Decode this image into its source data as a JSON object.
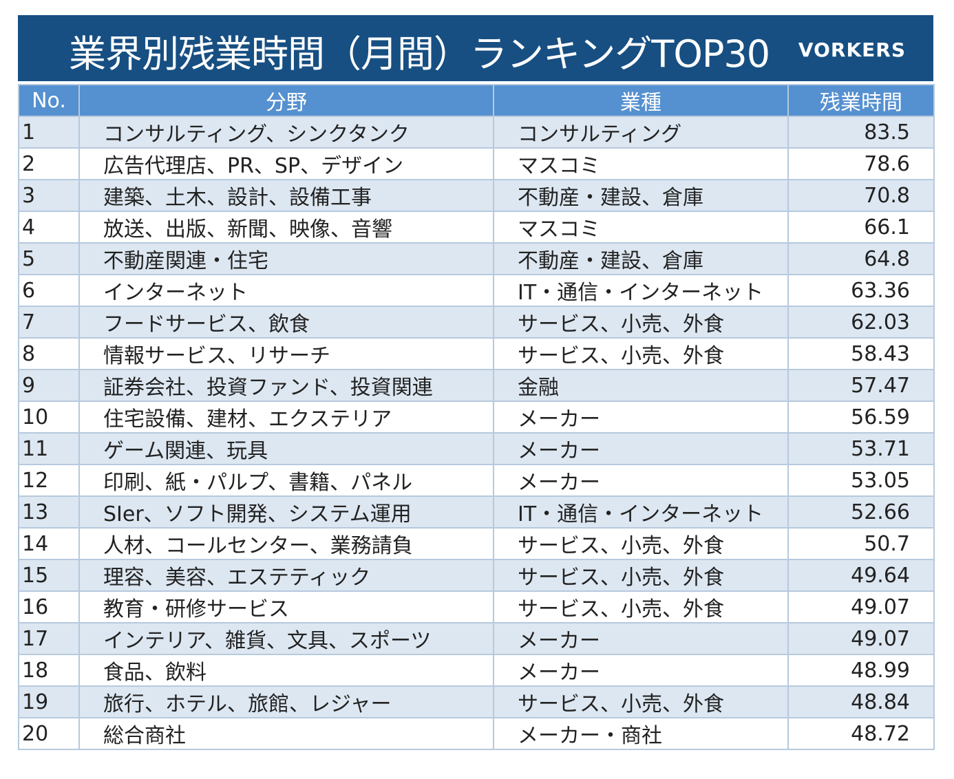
{
  "title": "業界別残業時間（月間）ランキングTOP30",
  "logo": "VORKERS",
  "headers": {
    "no": "No.",
    "field": "分野",
    "industry": "業種",
    "hours": "残業時間"
  },
  "rows": [
    {
      "no": "1",
      "field": "コンサルティング、シンクタンク",
      "industry": "コンサルティング",
      "hours": "83.5"
    },
    {
      "no": "2",
      "field": "広告代理店、PR、SP、デザイン",
      "industry": "マスコミ",
      "hours": "78.6"
    },
    {
      "no": "3",
      "field": "建築、土木、設計、設備工事",
      "industry": "不動産・建設、倉庫",
      "hours": "70.8"
    },
    {
      "no": "4",
      "field": "放送、出版、新聞、映像、音響",
      "industry": "マスコミ",
      "hours": "66.1"
    },
    {
      "no": "5",
      "field": "不動産関連・住宅",
      "industry": "不動産・建設、倉庫",
      "hours": "64.8"
    },
    {
      "no": "6",
      "field": "インターネット",
      "industry": "IT・通信・インターネット",
      "hours": "63.36"
    },
    {
      "no": "7",
      "field": "フードサービス、飲食",
      "industry": "サービス、小売、外食",
      "hours": "62.03"
    },
    {
      "no": "8",
      "field": "情報サービス、リサーチ",
      "industry": "サービス、小売、外食",
      "hours": "58.43"
    },
    {
      "no": "9",
      "field": "証券会社、投資ファンド、投資関連",
      "industry": "金融",
      "hours": "57.47"
    },
    {
      "no": "10",
      "field": "住宅設備、建材、エクステリア",
      "industry": "メーカー",
      "hours": "56.59"
    },
    {
      "no": "11",
      "field": "ゲーム関連、玩具",
      "industry": "メーカー",
      "hours": "53.71"
    },
    {
      "no": "12",
      "field": "印刷、紙・パルプ、書籍、パネル",
      "industry": "メーカー",
      "hours": "53.05"
    },
    {
      "no": "13",
      "field": "SIer、ソフト開発、システム運用",
      "industry": "IT・通信・インターネット",
      "hours": "52.66"
    },
    {
      "no": "14",
      "field": "人材、コールセンター、業務請負",
      "industry": "サービス、小売、外食",
      "hours": "50.7"
    },
    {
      "no": "15",
      "field": "理容、美容、エステティック",
      "industry": "サービス、小売、外食",
      "hours": "49.64"
    },
    {
      "no": "16",
      "field": "教育・研修サービス",
      "industry": "サービス、小売、外食",
      "hours": "49.07"
    },
    {
      "no": "17",
      "field": "インテリア、雑貨、文具、スポーツ",
      "industry": "メーカー",
      "hours": "49.07"
    },
    {
      "no": "18",
      "field": "食品、飲料",
      "industry": "メーカー",
      "hours": "48.99"
    },
    {
      "no": "19",
      "field": "旅行、ホテル、旅館、レジャー",
      "industry": "サービス、小売、外食",
      "hours": "48.84"
    },
    {
      "no": "20",
      "field": "総合商社",
      "industry": "メーカー・商社",
      "hours": "48.72"
    }
  ],
  "colors": {
    "title_bg": "#174f82",
    "header_bg": "#5590d0",
    "odd_row": "#dde7f1",
    "grid": "#b6c9de"
  }
}
